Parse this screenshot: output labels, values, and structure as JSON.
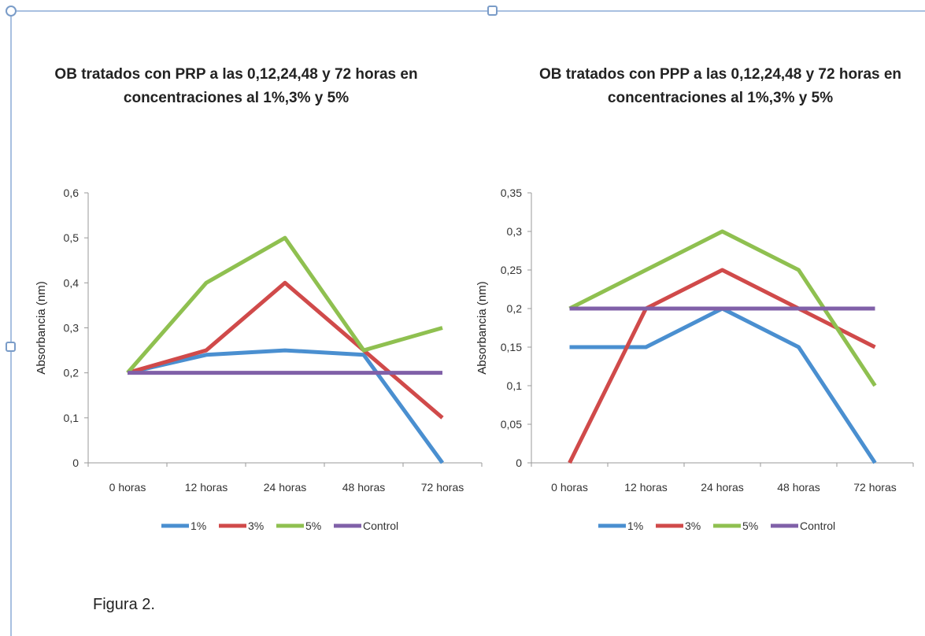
{
  "caption": "Figura 2.",
  "chart_data": [
    {
      "type": "line",
      "title": "OB tratados con PRP a las 0,12,24,48 y 72 horas en concentraciones al 1%,3% y 5%",
      "title_lines": [
        "OB tratados con PRP a las 0,12,24,48 y 72 horas en",
        "concentraciones al 1%,3% y 5%"
      ],
      "ylabel": "Absorbancia (nm)",
      "xlabel": "",
      "categories": [
        "0 horas",
        "12 horas",
        "24 horas",
        "48 horas",
        "72 horas"
      ],
      "ylim": [
        0,
        0.6
      ],
      "yticks": [
        "0",
        "0,1",
        "0,2",
        "0,3",
        "0,4",
        "0,5",
        "0,6"
      ],
      "ytick_values": [
        0,
        0.1,
        0.2,
        0.3,
        0.4,
        0.5,
        0.6
      ],
      "grid": false,
      "legend": "bottom",
      "series": [
        {
          "name": "1%",
          "color": "#4a8fd0",
          "values": [
            0.2,
            0.24,
            0.25,
            0.24,
            0
          ]
        },
        {
          "name": "3%",
          "color": "#d04a4a",
          "values": [
            0.2,
            0.25,
            0.4,
            0.25,
            0.1
          ]
        },
        {
          "name": "5%",
          "color": "#8fc050",
          "values": [
            0.2,
            0.4,
            0.5,
            0.25,
            0.3
          ]
        },
        {
          "name": "Control",
          "color": "#8060a8",
          "values": [
            0.2,
            0.2,
            0.2,
            0.2,
            0.2
          ]
        }
      ]
    },
    {
      "type": "line",
      "title": "OB tratados con PPP a las 0,12,24,48 y 72 horas en concentraciones al 1%,3% y 5%",
      "title_lines": [
        "OB tratados con PPP a las 0,12,24,48 y 72 horas en",
        "concentraciones al 1%,3% y 5%"
      ],
      "ylabel": "Absorbancia (nm)",
      "xlabel": "",
      "categories": [
        "0 horas",
        "12 horas",
        "24 horas",
        "48 horas",
        "72 horas"
      ],
      "ylim": [
        0,
        0.35
      ],
      "yticks": [
        "0",
        "0,05",
        "0,1",
        "0,15",
        "0,2",
        "0,25",
        "0,3",
        "0,35"
      ],
      "ytick_values": [
        0,
        0.05,
        0.1,
        0.15,
        0.2,
        0.25,
        0.3,
        0.35
      ],
      "grid": false,
      "legend": "bottom",
      "series": [
        {
          "name": "1%",
          "color": "#4a8fd0",
          "values": [
            0.15,
            0.15,
            0.2,
            0.15,
            0
          ]
        },
        {
          "name": "3%",
          "color": "#d04a4a",
          "values": [
            0,
            0.2,
            0.25,
            0.2,
            0.15
          ]
        },
        {
          "name": "5%",
          "color": "#8fc050",
          "values": [
            0.2,
            0.25,
            0.3,
            0.25,
            0.1
          ]
        },
        {
          "name": "Control",
          "color": "#8060a8",
          "values": [
            0.2,
            0.2,
            0.2,
            0.2,
            0.2
          ]
        }
      ]
    }
  ]
}
